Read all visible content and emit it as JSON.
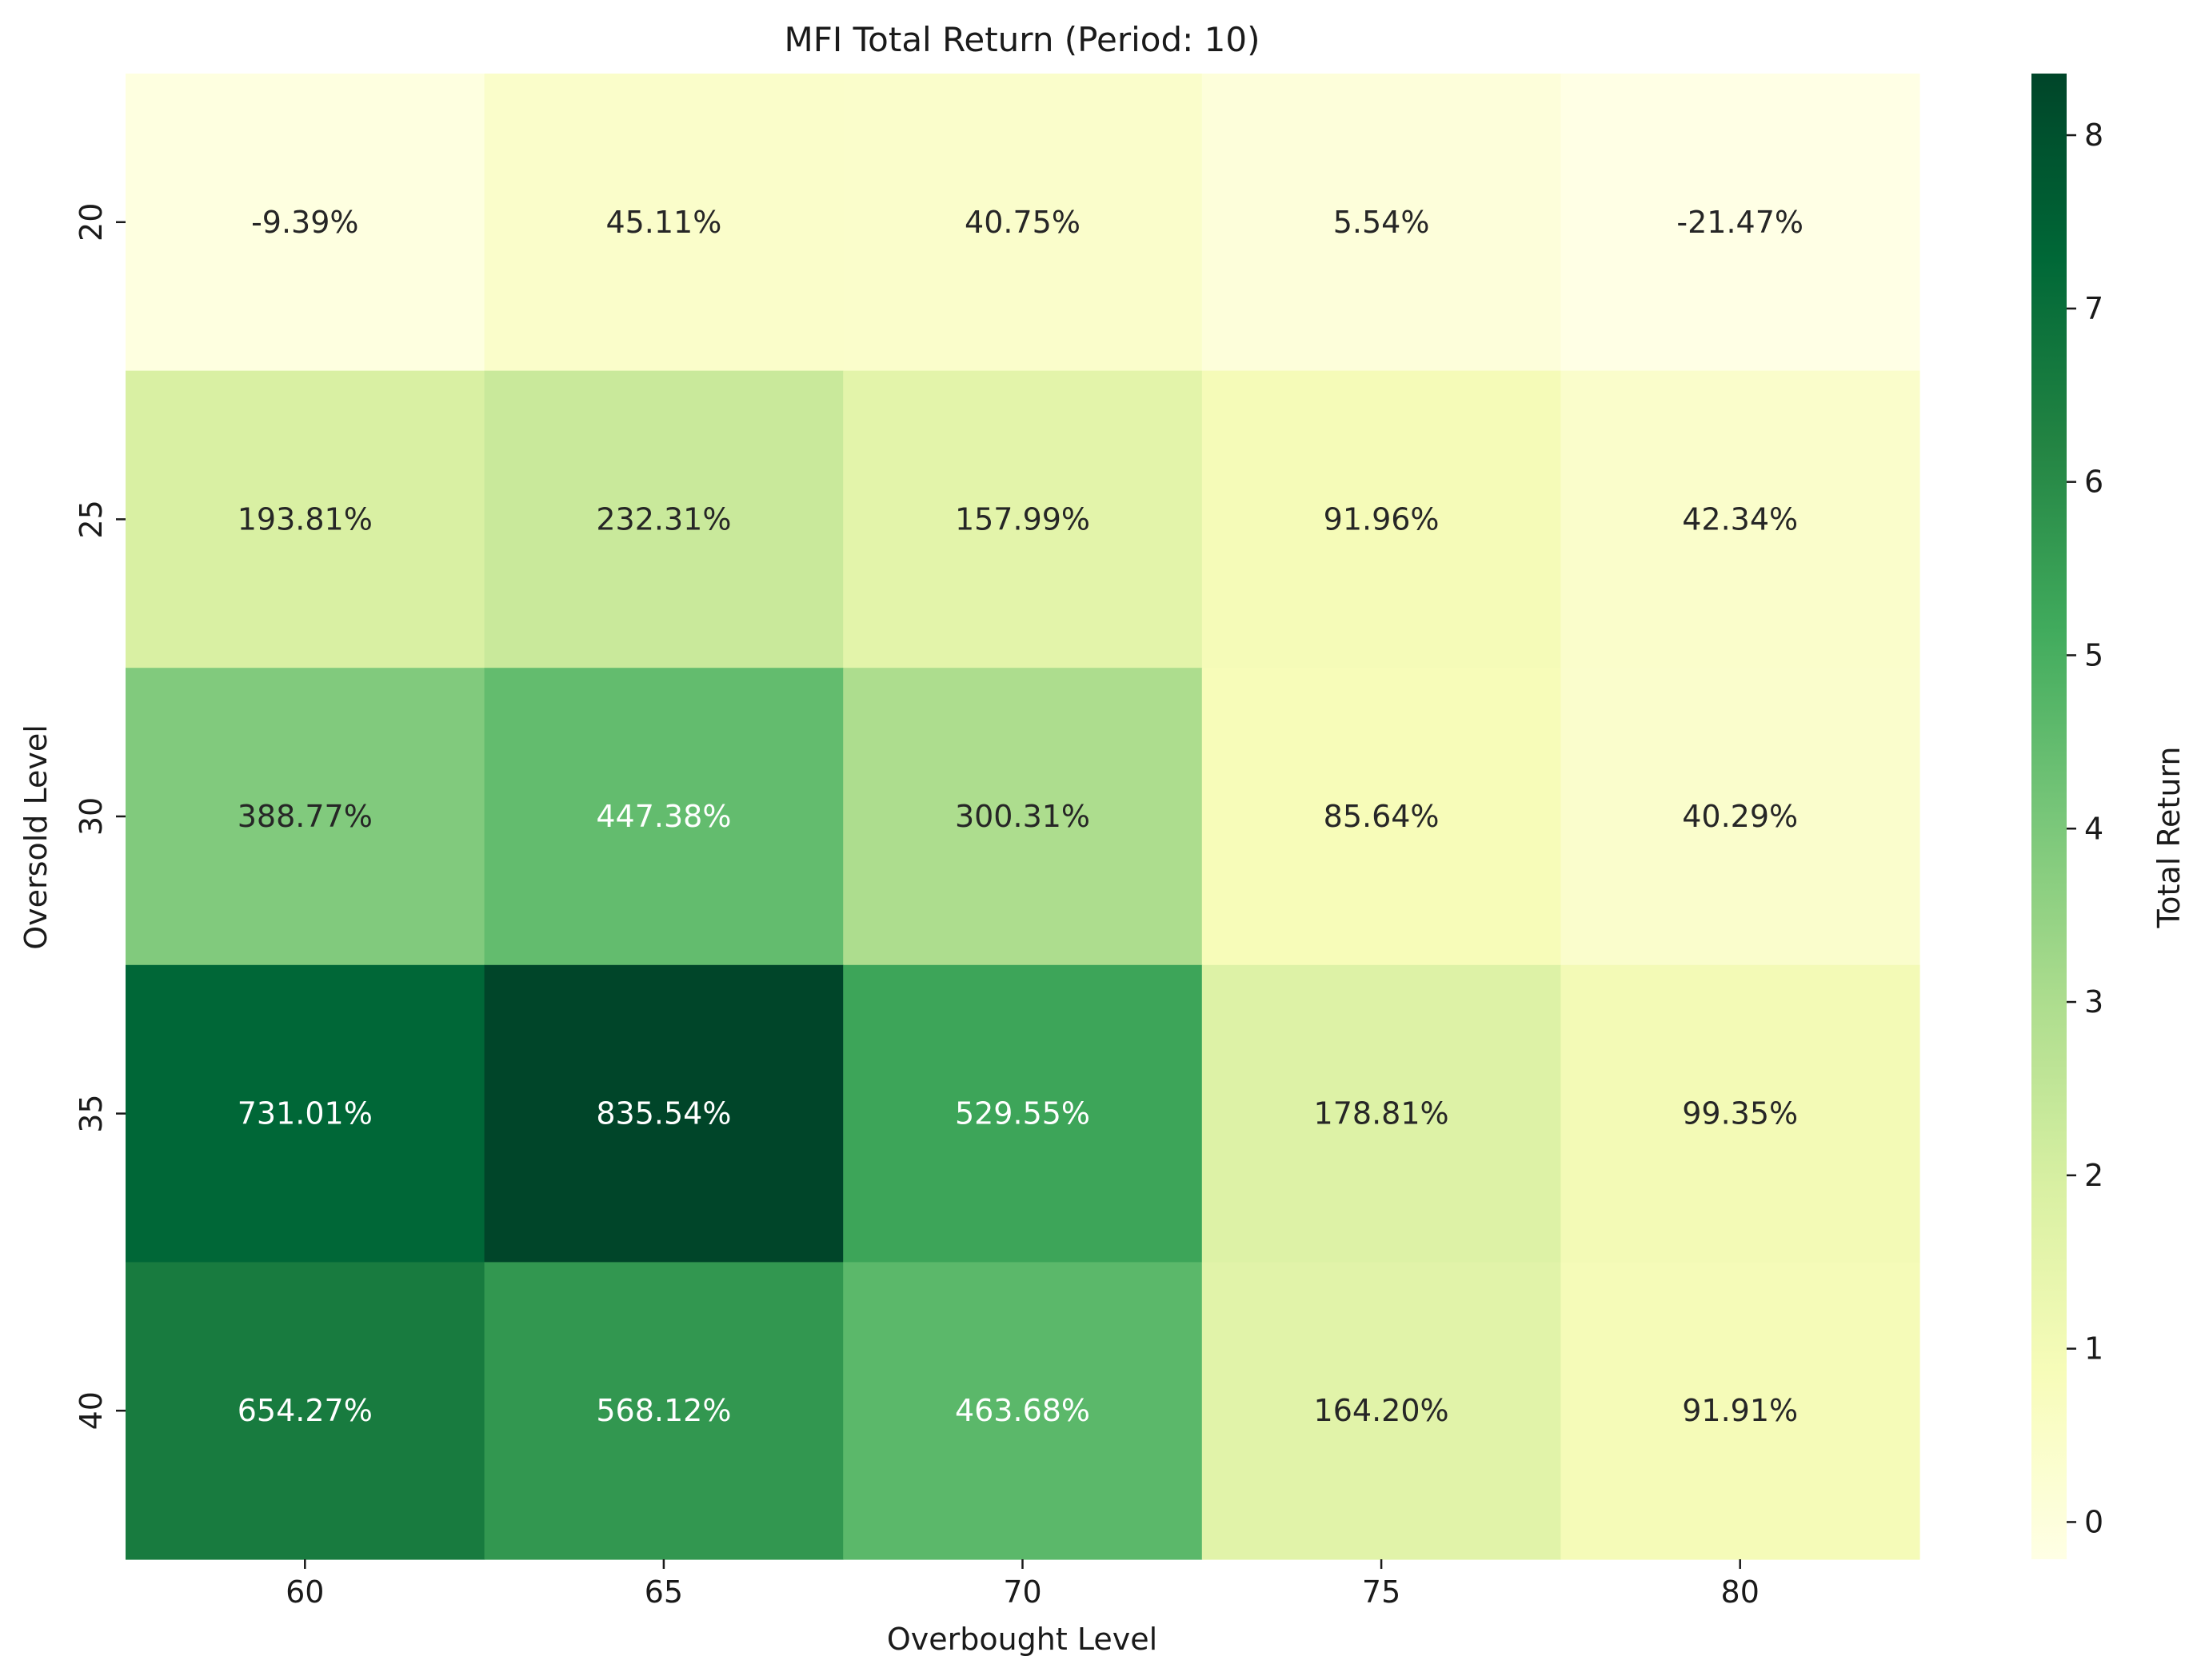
{
  "chart_data": {
    "type": "heatmap",
    "title": "MFI Total Return (Period: 10)",
    "xlabel": "Overbought Level",
    "ylabel": "Oversold Level",
    "x_categories": [
      "60",
      "65",
      "70",
      "75",
      "80"
    ],
    "y_categories": [
      "20",
      "25",
      "30",
      "35",
      "40"
    ],
    "values": [
      [
        -0.0939,
        0.4511,
        0.4075,
        0.0554,
        -0.2147
      ],
      [
        1.9381,
        2.3231,
        1.5799,
        0.9196,
        0.4234
      ],
      [
        3.8877,
        4.4738,
        3.0031,
        0.8564,
        0.4029
      ],
      [
        7.3101,
        8.3554,
        5.2955,
        1.7881,
        0.9935
      ],
      [
        6.5427,
        5.6812,
        4.6368,
        1.642,
        0.9191
      ]
    ],
    "cell_labels": [
      [
        "-9.39%",
        "45.11%",
        "40.75%",
        "5.54%",
        "-21.47%"
      ],
      [
        "193.81%",
        "232.31%",
        "157.99%",
        "91.96%",
        "42.34%"
      ],
      [
        "388.77%",
        "447.38%",
        "300.31%",
        "85.64%",
        "40.29%"
      ],
      [
        "731.01%",
        "835.54%",
        "529.55%",
        "178.81%",
        "99.35%"
      ],
      [
        "654.27%",
        "568.12%",
        "463.68%",
        "164.20%",
        "91.91%"
      ]
    ],
    "colorbar": {
      "label": "Total Return",
      "range": [
        -0.2147,
        8.3554
      ],
      "ticks": [
        "0",
        "1",
        "2",
        "3",
        "4",
        "5",
        "6",
        "7",
        "8"
      ],
      "colormap": "YlGn",
      "colors": [
        "#ffffe5",
        "#f7fcb9",
        "#d9f0a3",
        "#addd8e",
        "#78c679",
        "#41ab5d",
        "#238443",
        "#006837",
        "#004529"
      ]
    },
    "grid": false
  }
}
